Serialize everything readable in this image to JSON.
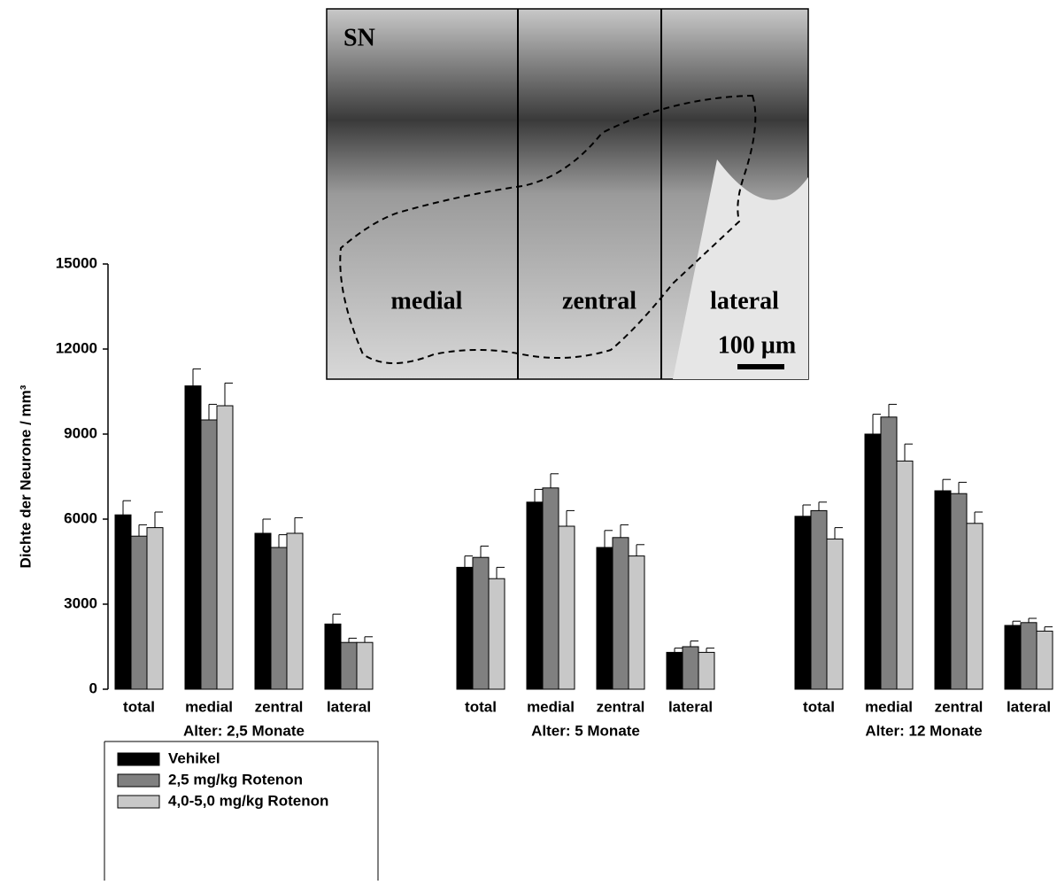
{
  "chart_data": {
    "type": "bar",
    "y_label": "Dichte der Neurone / mm³",
    "categories": [
      "total",
      "medial",
      "zentral",
      "lateral",
      "total",
      "medial",
      "zentral",
      "lateral",
      "total",
      "medial",
      "zentral",
      "lateral"
    ],
    "groups": [
      "Alter: 2,5 Monate",
      "Alter: 5 Monate",
      "Alter: 12 Monate"
    ],
    "ylim": [
      0,
      15000
    ],
    "yticks": [
      0,
      3000,
      6000,
      9000,
      12000,
      15000
    ],
    "series": [
      {
        "name": "Vehikel",
        "color": "#000000",
        "values": [
          6150,
          10700,
          5500,
          2300,
          4300,
          6600,
          5000,
          1300,
          6100,
          9000,
          7000,
          2250
        ],
        "errors": [
          500,
          600,
          500,
          350,
          400,
          450,
          600,
          150,
          400,
          700,
          400,
          150
        ]
      },
      {
        "name": "2,5 mg/kg Rotenon",
        "color": "#808080",
        "values": [
          5400,
          9500,
          5000,
          1650,
          4650,
          7100,
          5350,
          1500,
          6300,
          9600,
          6900,
          2350
        ],
        "errors": [
          400,
          550,
          450,
          150,
          400,
          500,
          450,
          200,
          300,
          450,
          400,
          150
        ]
      },
      {
        "name": "4,0-5,0 mg/kg Rotenon",
        "color": "#c8c8c8",
        "values": [
          5700,
          10000,
          5500,
          1650,
          3900,
          5750,
          4700,
          1300,
          5300,
          8050,
          5850,
          2050
        ],
        "errors": [
          550,
          800,
          550,
          200,
          400,
          550,
          400,
          150,
          400,
          600,
          400,
          150
        ]
      }
    ]
  },
  "inset": {
    "label": "SN",
    "regions": [
      "medial",
      "zentral",
      "lateral"
    ],
    "scale_bar": "100 µm"
  }
}
